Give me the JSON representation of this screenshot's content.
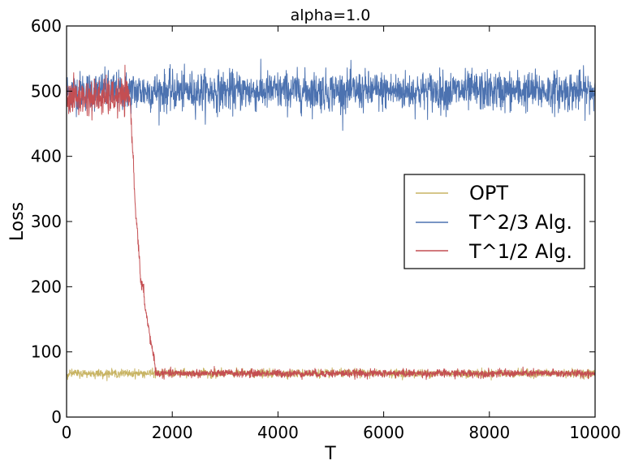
{
  "chart_data": {
    "type": "line",
    "title": "alpha=1.0",
    "xlabel": "T",
    "ylabel": "Loss",
    "xlim": [
      0,
      10000
    ],
    "ylim": [
      0,
      600
    ],
    "xticks": [
      0,
      2000,
      4000,
      6000,
      8000,
      10000
    ],
    "xtick_labels": [
      "0",
      "2000",
      "4000",
      "6000",
      "8000",
      "10000"
    ],
    "yticks": [
      0,
      100,
      200,
      300,
      400,
      500,
      600
    ],
    "ytick_labels": [
      "0",
      "100",
      "200",
      "300",
      "400",
      "500",
      "600"
    ],
    "grid": false,
    "legend_position": "center-right",
    "series": [
      {
        "name": "OPT",
        "color": "#c8b464",
        "noise": 3,
        "x": [
          0,
          10000
        ],
        "y": [
          67,
          67
        ]
      },
      {
        "name": "T^2/3 Alg.",
        "color": "#4c72b0",
        "noise": 15,
        "x": [
          0,
          10000
        ],
        "y": [
          500,
          500
        ]
      },
      {
        "name": "T^1/2 Alg.",
        "color": "#c44e52",
        "noise_segments": [
          {
            "from": 0,
            "to": 1200,
            "amp": 14
          },
          {
            "from": 1200,
            "to": 1700,
            "amp": 5
          },
          {
            "from": 1700,
            "to": 10000,
            "amp": 3
          }
        ],
        "x": [
          0,
          1200,
          1230,
          1260,
          1280,
          1300,
          1330,
          1360,
          1380,
          1400,
          1440,
          1460,
          1480,
          1520,
          1550,
          1580,
          1600,
          1630,
          1660,
          1680,
          1700,
          10000
        ],
        "y": [
          490,
          490,
          440,
          400,
          360,
          320,
          300,
          260,
          240,
          205,
          200,
          190,
          175,
          150,
          140,
          120,
          110,
          100,
          95,
          67,
          67,
          67
        ]
      }
    ]
  }
}
